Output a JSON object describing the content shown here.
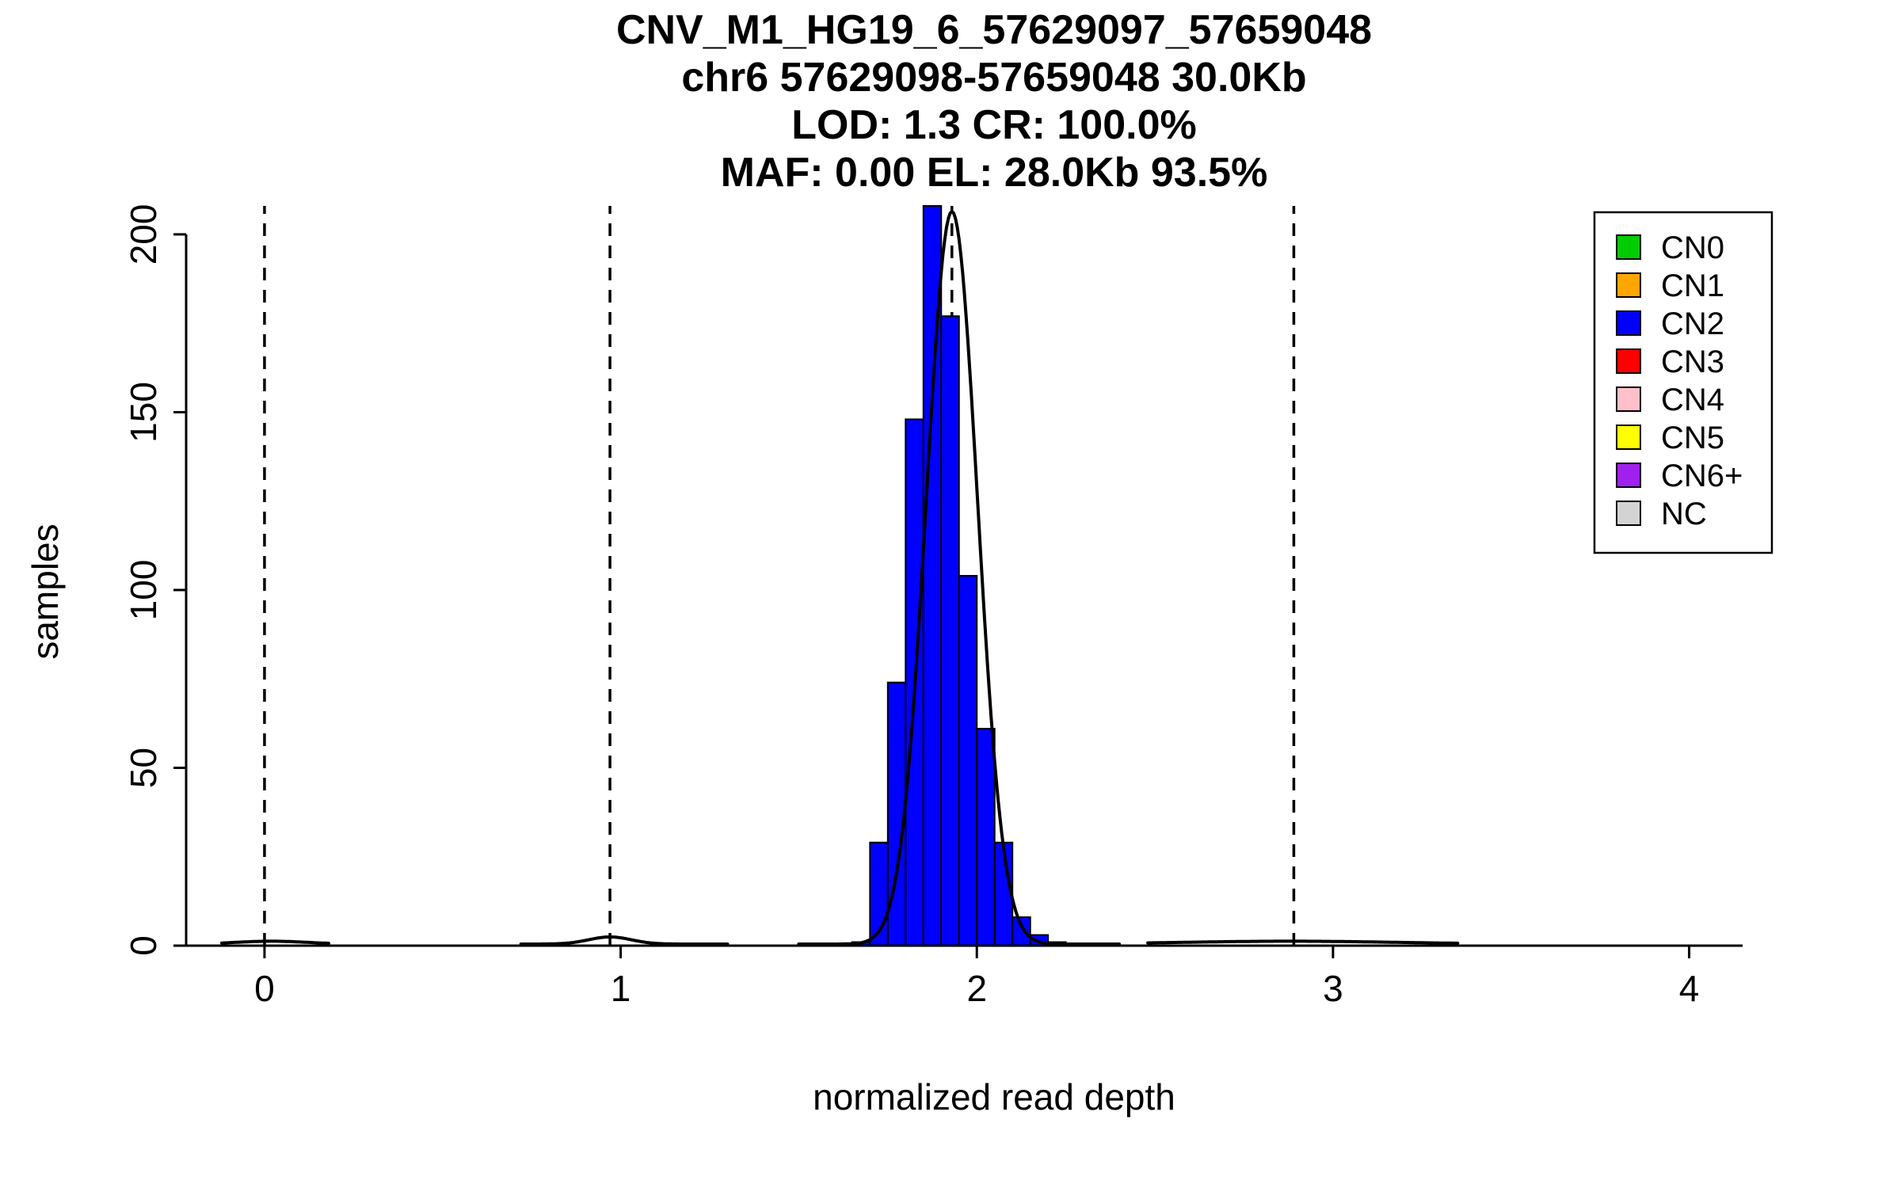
{
  "title": {
    "line1": "CNV_M1_HG19_6_57629097_57659048",
    "line2": "chr6 57629098-57659048 30.0Kb",
    "line3": "LOD: 1.3 CR: 100.0%",
    "line4": "MAF: 0.00 EL: 28.0Kb 93.5%"
  },
  "chart_data": {
    "type": "bar",
    "subtype": "histogram",
    "title": "CNV_M1_HG19_6_57629097_57659048\nchr6 57629098-57659048 30.0Kb\nLOD: 1.3 CR: 100.0%\nMAF: 0.00 EL: 28.0Kb 93.5%",
    "xlabel": "normalized read depth",
    "ylabel": "samples",
    "xlim": [
      -0.22,
      4.15
    ],
    "ylim": [
      0,
      208
    ],
    "x_ticks": [
      0,
      1,
      2,
      3,
      4
    ],
    "y_ticks": [
      0,
      50,
      100,
      150,
      200
    ],
    "grid": false,
    "legend_position": "top-right",
    "bin_start": 1.65,
    "bin_width": 0.05,
    "counts": [
      1,
      29,
      74,
      148,
      208,
      177,
      104,
      61,
      29,
      8,
      3,
      1
    ],
    "bar_color": "#0000FF",
    "bar_border_color": "#000000",
    "dashed_guides_x": [
      0.0,
      0.97,
      1.93,
      2.89
    ],
    "curve_color": "#000000",
    "curve": [
      {
        "mean": 0.02,
        "sd": 0.1,
        "amp": 0.8,
        "range": [
          -0.12,
          0.18
        ]
      },
      {
        "mean": 0.97,
        "sd": 0.06,
        "amp": 2.0,
        "range": [
          0.72,
          1.3
        ]
      },
      {
        "mean": 1.93,
        "sd": 0.072,
        "amp": 206,
        "range": [
          1.5,
          2.4
        ]
      },
      {
        "mean": 2.88,
        "sd": 0.3,
        "amp": 0.8,
        "range": [
          2.48,
          3.35
        ]
      }
    ],
    "legend": {
      "items": [
        {
          "label": "CN0",
          "color": "#00CC00"
        },
        {
          "label": "CN1",
          "color": "#FFA500"
        },
        {
          "label": "CN2",
          "color": "#0000FF"
        },
        {
          "label": "CN3",
          "color": "#FF0000"
        },
        {
          "label": "CN4",
          "color": "#FFC0CB"
        },
        {
          "label": "CN5",
          "color": "#FFFF00"
        },
        {
          "label": "CN6+",
          "color": "#A020F0"
        },
        {
          "label": "NC",
          "color": "#D3D3D3"
        }
      ]
    }
  }
}
